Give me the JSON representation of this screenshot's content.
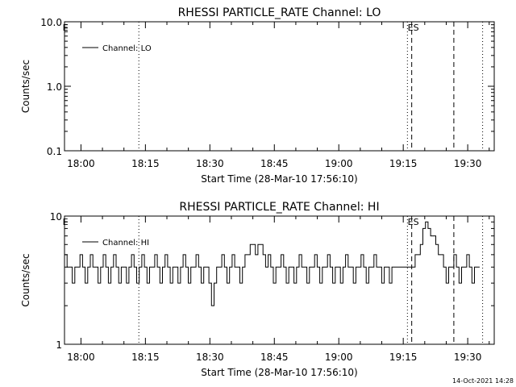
{
  "footer": {
    "timestamp": "14-Oct-2021 14:28"
  },
  "chart_data": [
    {
      "type": "line",
      "title": "RHESSI PARTICLE_RATE Channel: LO",
      "xlabel": "Start Time (28-Mar-10 17:56:10)",
      "ylabel": "Counts/sec",
      "x_units": "minutes after 17:56:10",
      "xlim": [
        0,
        100
      ],
      "ylim": [
        0.1,
        10.0
      ],
      "y_scale": "log",
      "x_ticks": [
        {
          "at": 3.83,
          "label": "18:00"
        },
        {
          "at": 18.83,
          "label": "18:15"
        },
        {
          "at": 33.83,
          "label": "18:30"
        },
        {
          "at": 48.83,
          "label": "18:45"
        },
        {
          "at": 63.83,
          "label": "19:00"
        },
        {
          "at": 78.83,
          "label": "19:15"
        },
        {
          "at": 93.83,
          "label": "19:30"
        }
      ],
      "y_ticks": [
        {
          "at": 0.1,
          "label": "0.1"
        },
        {
          "at": 1.0,
          "label": "1.0"
        },
        {
          "at": 10.0,
          "label": "10.0"
        }
      ],
      "legend": "Channel: LO",
      "legend_position": "top-left",
      "markers": [
        {
          "at": 0.5,
          "label": "E",
          "style": "none"
        },
        {
          "at": 17.3,
          "label": "",
          "style": "dotted"
        },
        {
          "at": 79.8,
          "label": "",
          "style": "dotted"
        },
        {
          "at": 80.8,
          "label": "ES",
          "style": "dashed"
        },
        {
          "at": 90.6,
          "label": "",
          "style": "dashed"
        },
        {
          "at": 97.3,
          "label": "",
          "style": "dotted"
        }
      ],
      "series": []
    },
    {
      "type": "line",
      "title": "RHESSI PARTICLE_RATE Channel: HI",
      "xlabel": "Start Time (28-Mar-10 17:56:10)",
      "ylabel": "Counts/sec",
      "x_units": "minutes after 17:56:10",
      "xlim": [
        0,
        100
      ],
      "ylim": [
        1,
        10
      ],
      "y_scale": "log",
      "x_ticks": [
        {
          "at": 3.83,
          "label": "18:00"
        },
        {
          "at": 18.83,
          "label": "18:15"
        },
        {
          "at": 33.83,
          "label": "18:30"
        },
        {
          "at": 48.83,
          "label": "18:45"
        },
        {
          "at": 63.83,
          "label": "19:00"
        },
        {
          "at": 78.83,
          "label": "19:15"
        },
        {
          "at": 93.83,
          "label": "19:30"
        }
      ],
      "y_ticks": [
        {
          "at": 1,
          "label": "1"
        },
        {
          "at": 10,
          "label": "10"
        }
      ],
      "legend": "Channel: HI",
      "legend_position": "top-left",
      "markers": [
        {
          "at": 0.5,
          "label": "E",
          "style": "none"
        },
        {
          "at": 17.3,
          "label": "",
          "style": "dotted"
        },
        {
          "at": 79.8,
          "label": "",
          "style": "dotted"
        },
        {
          "at": 80.8,
          "label": "ES",
          "style": "dashed"
        },
        {
          "at": 90.6,
          "label": "",
          "style": "dashed"
        },
        {
          "at": 97.3,
          "label": "",
          "style": "dotted"
        }
      ],
      "series": [
        {
          "x": [
            0.0,
            0.6,
            1.2,
            1.8,
            2.4,
            3.0,
            3.6,
            4.2,
            4.8,
            5.4,
            6.0,
            6.6,
            7.2,
            7.8,
            8.4,
            9.0,
            9.6,
            10.2,
            10.8,
            11.4,
            12.0,
            12.6,
            13.2,
            13.8,
            14.4,
            15.0,
            15.6,
            16.2,
            16.8,
            17.4,
            18.0,
            18.6,
            19.2,
            19.8,
            20.4,
            21.0,
            21.6,
            22.2,
            22.8,
            23.4,
            24.0,
            24.6,
            25.2,
            25.8,
            26.4,
            27.0,
            27.6,
            28.2,
            28.8,
            29.4,
            30.0,
            30.6,
            31.2,
            31.8,
            32.4,
            33.0,
            33.6,
            34.2,
            34.8,
            35.4,
            36.0,
            36.6,
            37.2,
            37.8,
            38.4,
            39.0,
            39.6,
            40.2,
            40.8,
            41.4,
            42.0,
            42.6,
            43.2,
            43.8,
            44.4,
            45.0,
            45.6,
            46.2,
            46.8,
            47.4,
            48.0,
            48.6,
            49.2,
            49.8,
            50.4,
            51.0,
            51.6,
            52.2,
            52.8,
            53.4,
            54.0,
            54.6,
            55.2,
            55.8,
            56.4,
            57.0,
            57.6,
            58.2,
            58.8,
            59.4,
            60.0,
            60.6,
            61.2,
            61.8,
            62.4,
            63.0,
            63.6,
            64.2,
            64.8,
            65.4,
            66.0,
            66.6,
            67.2,
            67.8,
            68.4,
            69.0,
            69.6,
            70.2,
            70.8,
            71.4,
            72.0,
            72.6,
            73.2,
            73.8,
            74.4,
            75.0,
            75.6,
            76.2,
            76.8,
            77.4,
            78.0,
            78.6,
            79.2,
            79.8,
            80.4,
            81.0,
            81.6,
            82.2,
            82.8,
            83.4,
            84.0,
            84.6,
            85.2,
            85.8,
            86.4,
            87.0,
            87.6,
            88.2,
            88.8,
            89.4,
            90.0,
            90.6,
            91.2,
            91.8,
            92.4,
            93.0,
            93.6,
            94.2,
            94.8,
            95.4,
            96.0
          ],
          "values": [
            5,
            4,
            4,
            3,
            4,
            4,
            5,
            4,
            3,
            4,
            5,
            4,
            4,
            3,
            4,
            5,
            4,
            3,
            4,
            5,
            4,
            3,
            4,
            4,
            3,
            4,
            5,
            4,
            3,
            4,
            5,
            4,
            3,
            4,
            4,
            5,
            4,
            3,
            4,
            5,
            4,
            3,
            4,
            4,
            3,
            4,
            5,
            4,
            3,
            4,
            4,
            5,
            4,
            3,
            4,
            4,
            3,
            2,
            3,
            4,
            4,
            5,
            4,
            3,
            4,
            5,
            4,
            4,
            3,
            4,
            5,
            5,
            6,
            6,
            5,
            6,
            6,
            5,
            4,
            5,
            4,
            3,
            4,
            4,
            5,
            4,
            3,
            4,
            4,
            3,
            4,
            5,
            4,
            4,
            3,
            4,
            4,
            5,
            4,
            3,
            4,
            4,
            5,
            4,
            3,
            4,
            4,
            3,
            4,
            5,
            4,
            4,
            3,
            4,
            4,
            5,
            4,
            3,
            4,
            4,
            5,
            4,
            4,
            3,
            4,
            4,
            3,
            4,
            4,
            4,
            4,
            4,
            4,
            4,
            4,
            4,
            5,
            5,
            6,
            8,
            9,
            8,
            7,
            7,
            6,
            5,
            5,
            4,
            3,
            4,
            4,
            5,
            4,
            3,
            4,
            4,
            5,
            4,
            3,
            4,
            4
          ]
        }
      ]
    }
  ]
}
